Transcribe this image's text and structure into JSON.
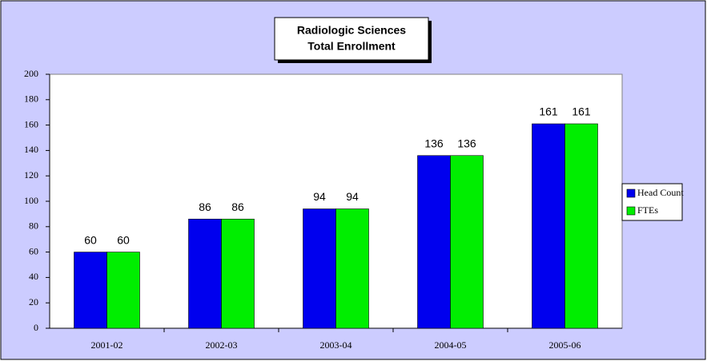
{
  "chart_data": {
    "type": "bar",
    "title": [
      "Radiologic Sciences",
      "Total Enrollment"
    ],
    "categories": [
      "2001-02",
      "2002-03",
      "2003-04",
      "2004-05",
      "2005-06"
    ],
    "series": [
      {
        "name": "Head Count",
        "color": "#0000ee",
        "values": [
          60,
          86,
          94,
          136,
          161
        ]
      },
      {
        "name": "FTEs",
        "color": "#00ee00",
        "values": [
          60,
          86,
          94,
          136,
          161
        ]
      }
    ],
    "ylim": [
      0,
      200
    ],
    "yticks": [
      0,
      20,
      40,
      60,
      80,
      100,
      120,
      140,
      160,
      180,
      200
    ],
    "grid": false,
    "legend": "right"
  }
}
